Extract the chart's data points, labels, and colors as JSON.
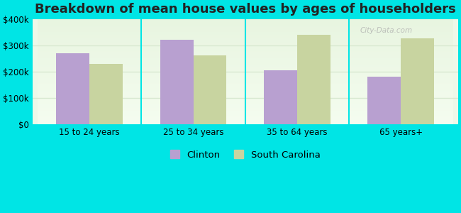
{
  "title": "Breakdown of mean house values by ages of householders",
  "categories": [
    "15 to 24 years",
    "25 to 34 years",
    "35 to 64 years",
    "65 years+"
  ],
  "clinton_values": [
    270000,
    320000,
    205000,
    182000
  ],
  "sc_values": [
    230000,
    262000,
    340000,
    325000
  ],
  "clinton_color": "#b8a0d0",
  "sc_color": "#c8d4a0",
  "background_color": "#00e5e5",
  "ylim": [
    0,
    400000
  ],
  "yticks": [
    0,
    100000,
    200000,
    300000,
    400000
  ],
  "legend_labels": [
    "Clinton",
    "South Carolina"
  ],
  "title_fontsize": 13,
  "tick_fontsize": 8.5,
  "legend_fontsize": 9.5,
  "bar_width": 0.32,
  "watermark_text": "City-Data.com",
  "divider_color": "#00e5e5",
  "grid_color": "#d8e8d0"
}
